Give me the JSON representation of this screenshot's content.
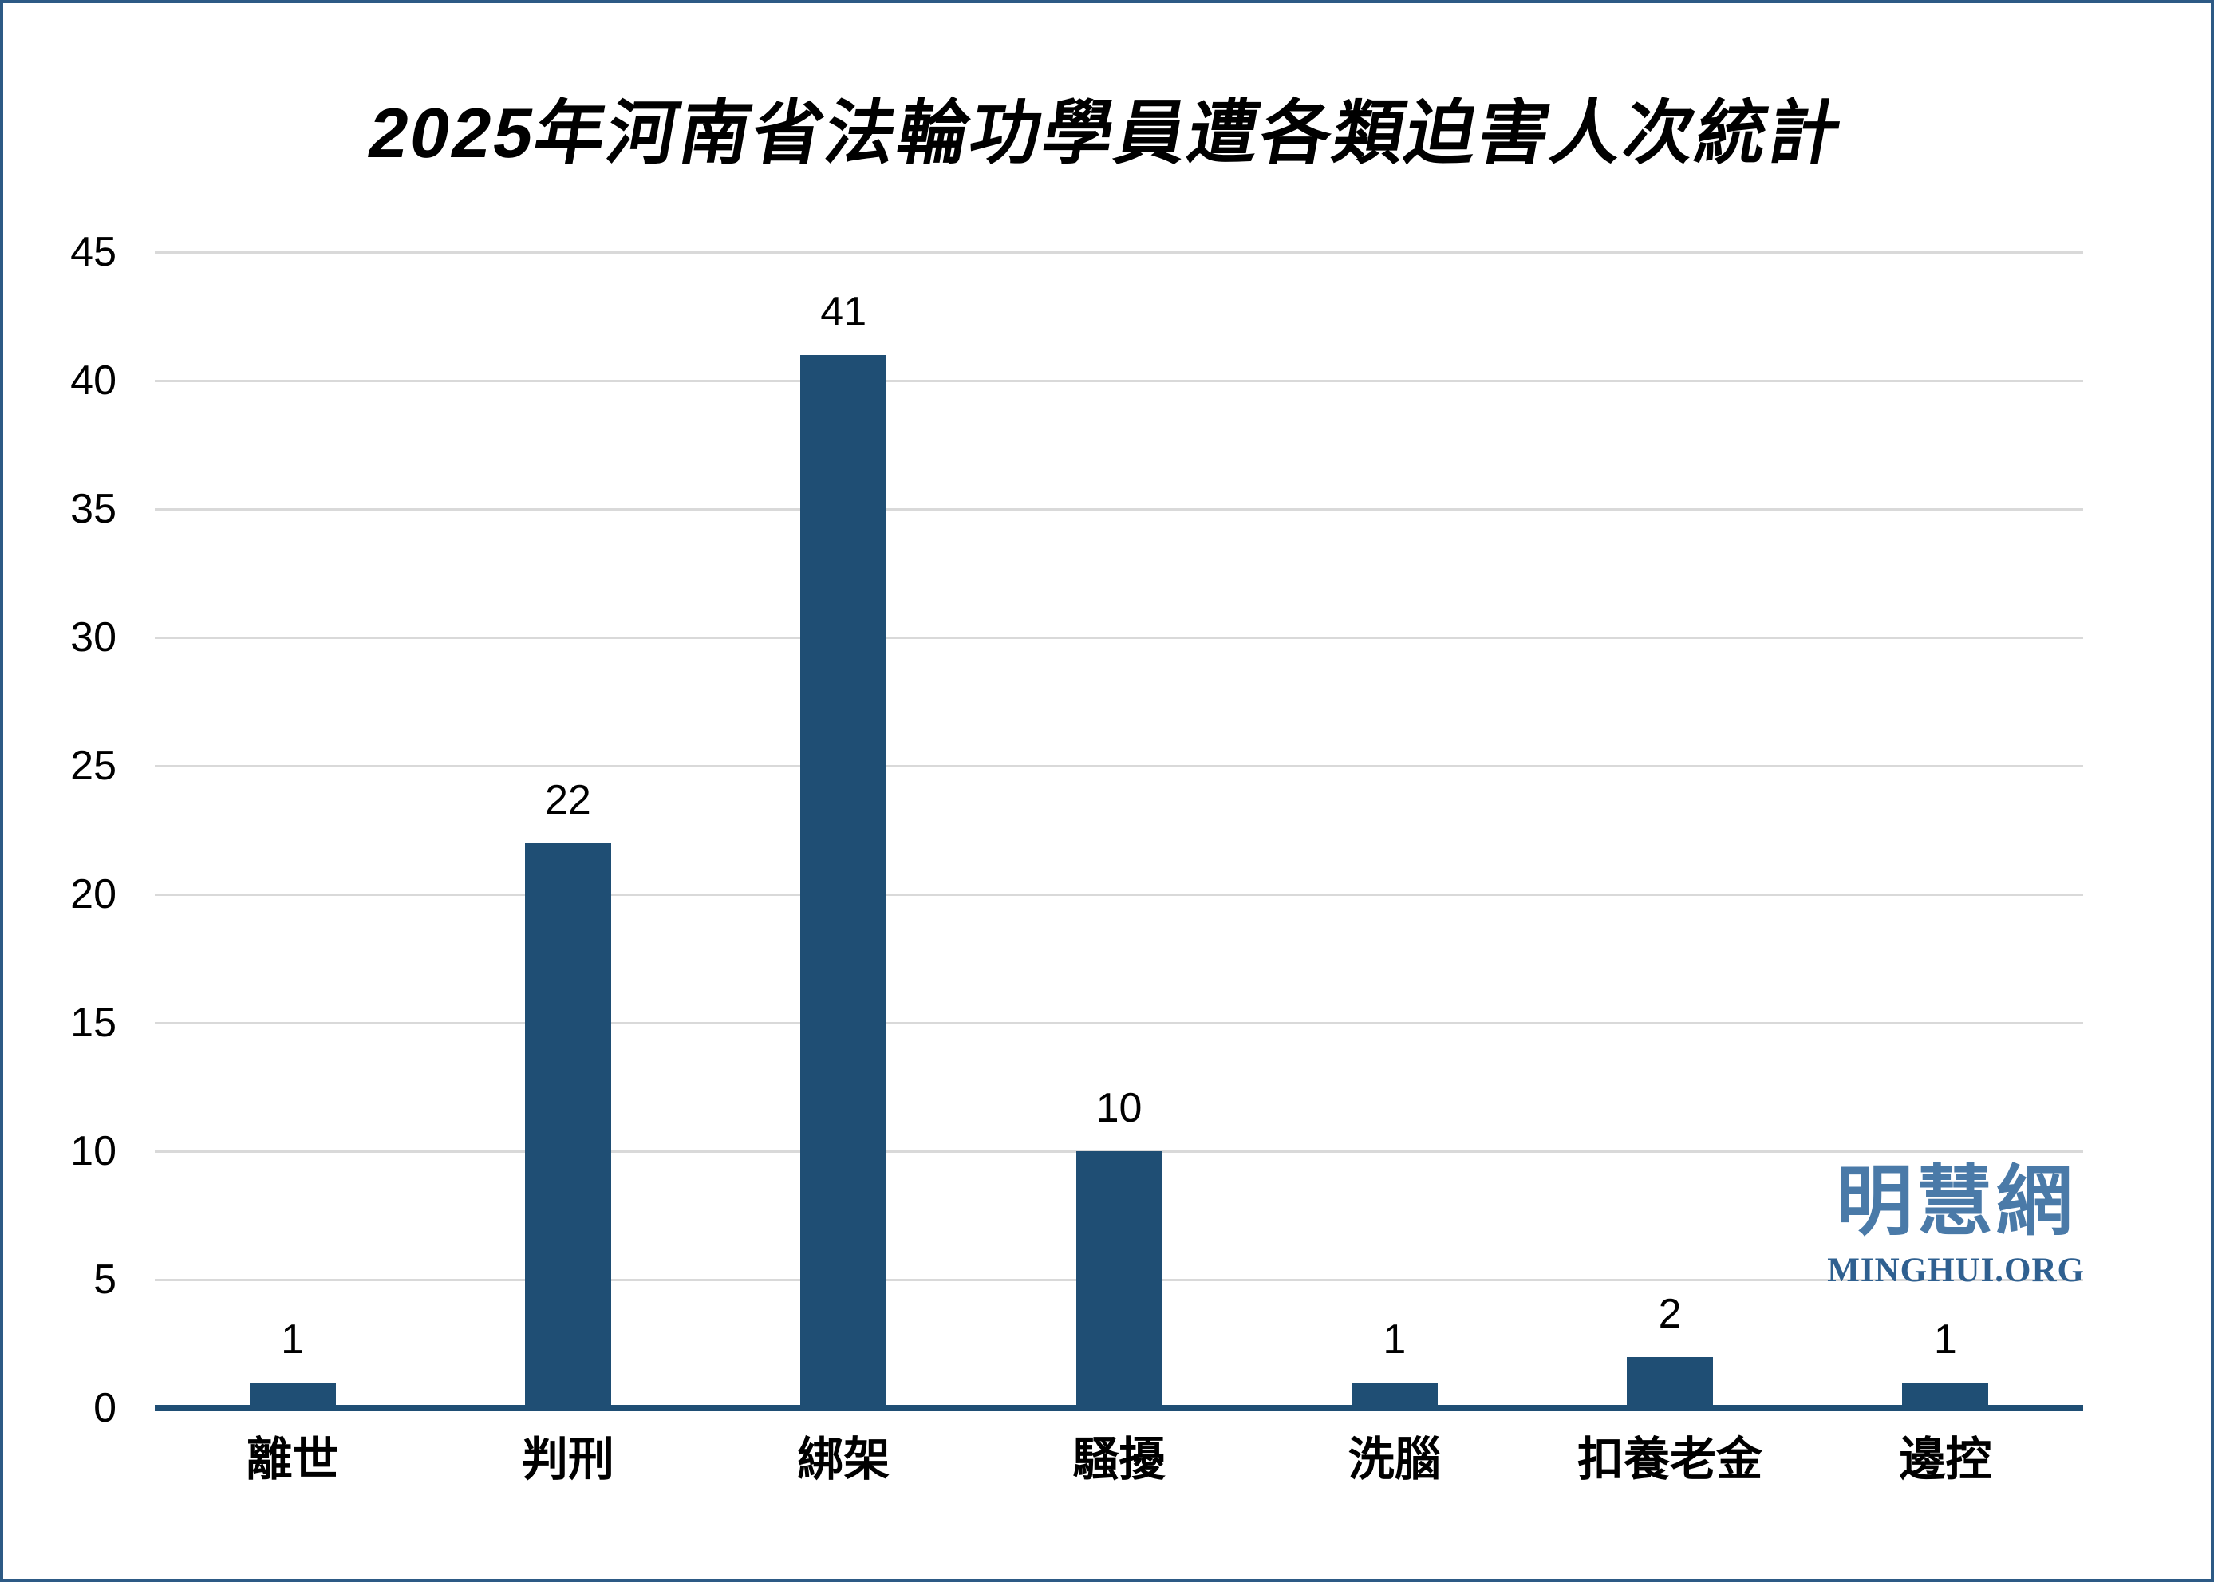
{
  "chart_data": {
    "type": "bar",
    "title": "2025年河南省法輪功學員遭各類迫害人次統計",
    "categories": [
      "離世",
      "判刑",
      "綁架",
      "騷擾",
      "洗腦",
      "扣養老金",
      "邊控"
    ],
    "values": [
      1,
      22,
      41,
      10,
      1,
      2,
      1
    ],
    "data_labels": [
      "1",
      "22",
      "41",
      "10",
      "1",
      "2",
      "1"
    ],
    "xlabel": "",
    "ylabel": "",
    "ylim": [
      0,
      45
    ],
    "yticks": [
      0,
      5,
      10,
      15,
      20,
      25,
      30,
      35,
      40,
      45
    ],
    "grid": "horizontal",
    "legend_position": "none",
    "bar_color": "#1F4E74",
    "axis_line_color": "#1F4E74",
    "gridline_color": "#D9D9D9",
    "text_color": "#000000"
  },
  "watermark": {
    "cjk": "明慧網",
    "latin": "MINGHUI.ORG",
    "cjk_color": "#4A7AA8",
    "latin_color": "#2F6090"
  },
  "page": {
    "border_color": "#2d5a85",
    "background_color": "#ffffff"
  }
}
